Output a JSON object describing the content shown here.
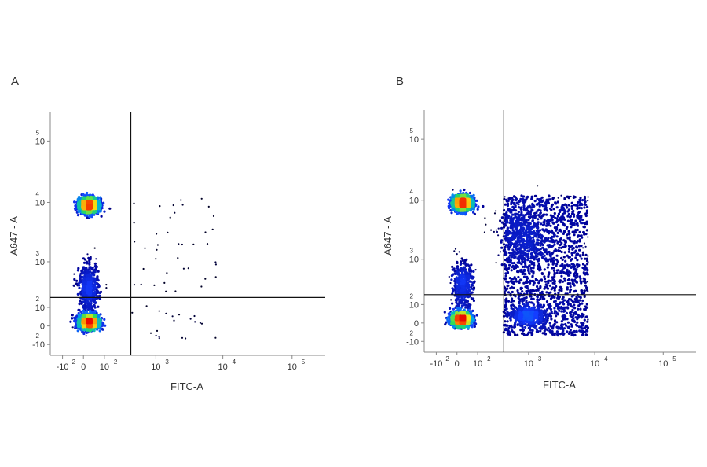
{
  "chart_data": [
    {
      "type": "scatter",
      "panel_label": "A",
      "xlabel": "FITC-A",
      "ylabel": "A647   - A",
      "x_ticks": [
        {
          "text": "-10",
          "exp": "2"
        },
        {
          "text": "0",
          "exp": ""
        },
        {
          "text": "10",
          "exp": "2"
        },
        {
          "text": "10",
          "exp": "3"
        },
        {
          "text": "10",
          "exp": "4"
        },
        {
          "text": "10",
          "exp": "5"
        }
      ],
      "y_ticks": [
        {
          "text": "-10",
          "exp": "2"
        },
        {
          "text": "0",
          "exp": ""
        },
        {
          "text": "10",
          "exp": "2"
        },
        {
          "text": "10",
          "exp": "3"
        },
        {
          "text": "10",
          "exp": "4"
        },
        {
          "text": "10",
          "exp": "5"
        }
      ],
      "gate": {
        "x": 380,
        "y": 190
      },
      "populations": [
        {
          "x": 20,
          "y": 15,
          "sx": 0.07,
          "sy": 0.055,
          "weight": 0.45
        },
        {
          "x": 20,
          "y": 9000,
          "sx": 0.07,
          "sy": 0.06,
          "weight": 0.45
        },
        {
          "x": 20,
          "y": 300,
          "sx": 0.07,
          "sy": 0.2,
          "weight": 0.1
        }
      ],
      "scatter_points": 60
    },
    {
      "type": "scatter",
      "panel_label": "B",
      "xlabel": "FITC-A",
      "ylabel": "A647   - A",
      "x_ticks": [
        {
          "text": "-10",
          "exp": "2"
        },
        {
          "text": "0",
          "exp": ""
        },
        {
          "text": "10",
          "exp": "2"
        },
        {
          "text": "10",
          "exp": "3"
        },
        {
          "text": "10",
          "exp": "4"
        },
        {
          "text": "10",
          "exp": "5"
        }
      ],
      "y_ticks": [
        {
          "text": "-10",
          "exp": "2"
        },
        {
          "text": "0",
          "exp": ""
        },
        {
          "text": "10",
          "exp": "2"
        },
        {
          "text": "10",
          "exp": "3"
        },
        {
          "text": "10",
          "exp": "4"
        },
        {
          "text": "10",
          "exp": "5"
        }
      ],
      "gate": {
        "x": 380,
        "y": 190
      },
      "populations": [
        {
          "x": 15,
          "y": 15,
          "sx": 0.07,
          "sy": 0.055,
          "weight": 0.38
        },
        {
          "x": 20,
          "y": 9000,
          "sx": 0.07,
          "sy": 0.06,
          "weight": 0.38
        },
        {
          "x": 20,
          "y": 300,
          "sx": 0.08,
          "sy": 0.2,
          "weight": 0.08
        },
        {
          "x": 1000,
          "y": 30,
          "sx": 0.12,
          "sy": 0.08,
          "weight": 0.08
        },
        {
          "x": 800,
          "y": 2500,
          "sx": 0.18,
          "sy": 0.25,
          "weight": 0.08
        }
      ],
      "scatter_points": 1600
    }
  ]
}
